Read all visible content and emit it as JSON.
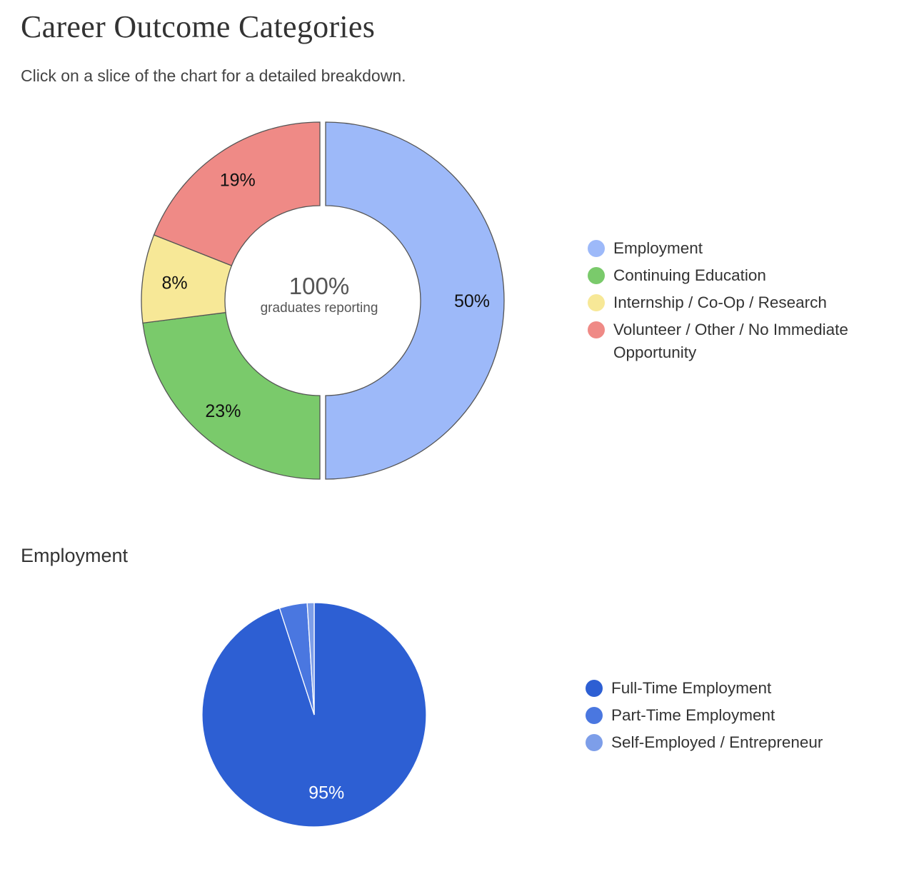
{
  "page": {
    "title": "Career Outcome Categories",
    "subtitle": "Click on a slice of the chart for a detailed breakdown."
  },
  "detail_section": {
    "heading": "Employment"
  },
  "chart_data": [
    {
      "type": "pie",
      "variant": "donut",
      "center_value": "100%",
      "center_caption": "graduates reporting",
      "categories": [
        "Employment",
        "Continuing Education",
        "Internship / Co-Op / Research",
        "Volunteer / Other / No Immediate Opportunity"
      ],
      "values": [
        50,
        23,
        8,
        19
      ],
      "labels": [
        "50%",
        "23%",
        "8%",
        "19%"
      ],
      "colors": [
        "#9db9f9",
        "#7aca6b",
        "#f7e897",
        "#ef8a86"
      ],
      "selected": "Employment",
      "legend_position": "right"
    },
    {
      "type": "pie",
      "categories": [
        "Full-Time Employment",
        "Part-Time Employment",
        "Self-Employed / Entrepreneur"
      ],
      "values": [
        95,
        4,
        1
      ],
      "labels": [
        "95%",
        "",
        ""
      ],
      "colors": [
        "#2d5fd3",
        "#4a77e0",
        "#7d9ee9"
      ],
      "legend_position": "right"
    }
  ]
}
